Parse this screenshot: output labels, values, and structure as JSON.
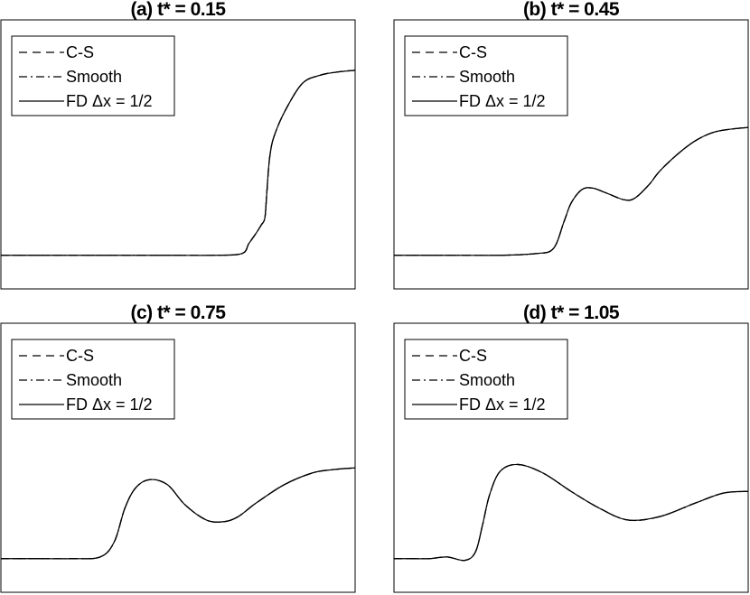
{
  "chart_data": [
    {
      "type": "line",
      "title": "(a) t* = 0.15",
      "legend": [
        "C-S",
        "Smooth",
        "FD  Δx = 1/2"
      ],
      "legend_placement": "top-left",
      "grid": false,
      "x": [
        0,
        0.1,
        0.2,
        0.3,
        0.4,
        0.5,
        0.6,
        0.68,
        0.7,
        0.72,
        0.735,
        0.745,
        0.75,
        0.755,
        0.76,
        0.77,
        0.8,
        0.85,
        0.9,
        0.95,
        1.0
      ],
      "series": [
        {
          "name": "C-S",
          "values": [
            0.2,
            0.2,
            0.2,
            0.2,
            0.2,
            0.2,
            0.2,
            0.21,
            0.27,
            0.33,
            0.38,
            0.42,
            0.55,
            0.7,
            0.8,
            0.9,
            1.05,
            1.22,
            1.27,
            1.29,
            1.3
          ]
        },
        {
          "name": "Smooth",
          "values": [
            0.2,
            0.2,
            0.2,
            0.2,
            0.2,
            0.2,
            0.2,
            0.21,
            0.27,
            0.33,
            0.38,
            0.42,
            0.55,
            0.7,
            0.8,
            0.9,
            1.05,
            1.22,
            1.27,
            1.29,
            1.3
          ]
        },
        {
          "name": "FD  Δx = 1/2",
          "values": [
            0.2,
            0.2,
            0.2,
            0.2,
            0.2,
            0.2,
            0.2,
            0.21,
            0.27,
            0.33,
            0.38,
            0.42,
            0.55,
            0.7,
            0.8,
            0.9,
            1.05,
            1.22,
            1.27,
            1.29,
            1.3
          ]
        }
      ]
    },
    {
      "type": "line",
      "title": "(b) t* = 0.45",
      "legend": [
        "C-S",
        "Smooth",
        "FD  Δx = 1/2"
      ],
      "legend_placement": "top-left",
      "grid": false,
      "x": [
        0,
        0.1,
        0.2,
        0.3,
        0.4,
        0.45,
        0.48,
        0.5,
        0.53,
        0.56,
        0.6,
        0.65,
        0.68,
        0.72,
        0.75,
        0.8,
        0.85,
        0.9,
        0.95,
        1.0
      ],
      "series": [
        {
          "name": "C-S",
          "values": [
            0.2,
            0.2,
            0.2,
            0.2,
            0.21,
            0.24,
            0.4,
            0.51,
            0.59,
            0.6,
            0.57,
            0.53,
            0.54,
            0.62,
            0.7,
            0.8,
            0.88,
            0.93,
            0.95,
            0.96
          ]
        },
        {
          "name": "Smooth",
          "values": [
            0.2,
            0.2,
            0.2,
            0.2,
            0.21,
            0.24,
            0.4,
            0.51,
            0.59,
            0.6,
            0.57,
            0.53,
            0.54,
            0.62,
            0.7,
            0.8,
            0.88,
            0.93,
            0.95,
            0.96
          ]
        },
        {
          "name": "FD  Δx = 1/2",
          "values": [
            0.2,
            0.2,
            0.2,
            0.2,
            0.21,
            0.24,
            0.4,
            0.51,
            0.59,
            0.6,
            0.57,
            0.53,
            0.54,
            0.62,
            0.7,
            0.8,
            0.88,
            0.93,
            0.95,
            0.96
          ]
        }
      ]
    },
    {
      "type": "line",
      "title": "(c) t* = 0.75",
      "legend": [
        "C-S",
        "Smooth",
        "FD  Δx = 1/2"
      ],
      "legend_placement": "top-left",
      "grid": false,
      "x": [
        0,
        0.1,
        0.2,
        0.28,
        0.32,
        0.35,
        0.38,
        0.42,
        0.47,
        0.52,
        0.58,
        0.63,
        0.67,
        0.72,
        0.8,
        0.88,
        0.94,
        1.0
      ],
      "series": [
        {
          "name": "C-S",
          "values": [
            0.2,
            0.2,
            0.2,
            0.21,
            0.3,
            0.5,
            0.62,
            0.67,
            0.64,
            0.52,
            0.43,
            0.42,
            0.45,
            0.53,
            0.64,
            0.71,
            0.73,
            0.74
          ]
        },
        {
          "name": "Smooth",
          "values": [
            0.2,
            0.2,
            0.2,
            0.21,
            0.3,
            0.5,
            0.62,
            0.67,
            0.64,
            0.52,
            0.43,
            0.42,
            0.45,
            0.53,
            0.64,
            0.71,
            0.73,
            0.74
          ]
        },
        {
          "name": "FD  Δx = 1/2",
          "values": [
            0.2,
            0.2,
            0.2,
            0.21,
            0.3,
            0.5,
            0.62,
            0.67,
            0.64,
            0.52,
            0.43,
            0.42,
            0.45,
            0.53,
            0.64,
            0.71,
            0.73,
            0.74
          ]
        }
      ]
    },
    {
      "type": "line",
      "title": "(d) t* = 1.05",
      "legend": [
        "C-S",
        "Smooth",
        "FD  Δx = 1/2"
      ],
      "legend_placement": "top-left",
      "grid": false,
      "x": [
        0,
        0.05,
        0.1,
        0.15,
        0.2,
        0.23,
        0.25,
        0.27,
        0.3,
        0.35,
        0.42,
        0.5,
        0.58,
        0.66,
        0.75,
        0.85,
        0.93,
        1.0
      ],
      "series": [
        {
          "name": "C-S",
          "values": [
            0.2,
            0.2,
            0.2,
            0.21,
            0.19,
            0.24,
            0.4,
            0.58,
            0.72,
            0.76,
            0.71,
            0.6,
            0.5,
            0.43,
            0.45,
            0.53,
            0.59,
            0.6
          ]
        },
        {
          "name": "Smooth",
          "values": [
            0.2,
            0.2,
            0.2,
            0.21,
            0.19,
            0.24,
            0.4,
            0.58,
            0.72,
            0.76,
            0.71,
            0.6,
            0.5,
            0.43,
            0.45,
            0.53,
            0.59,
            0.6
          ]
        },
        {
          "name": "FD  Δx = 1/2",
          "values": [
            0.2,
            0.2,
            0.2,
            0.21,
            0.19,
            0.24,
            0.4,
            0.58,
            0.72,
            0.76,
            0.71,
            0.6,
            0.5,
            0.43,
            0.45,
            0.53,
            0.59,
            0.6
          ]
        }
      ]
    }
  ]
}
